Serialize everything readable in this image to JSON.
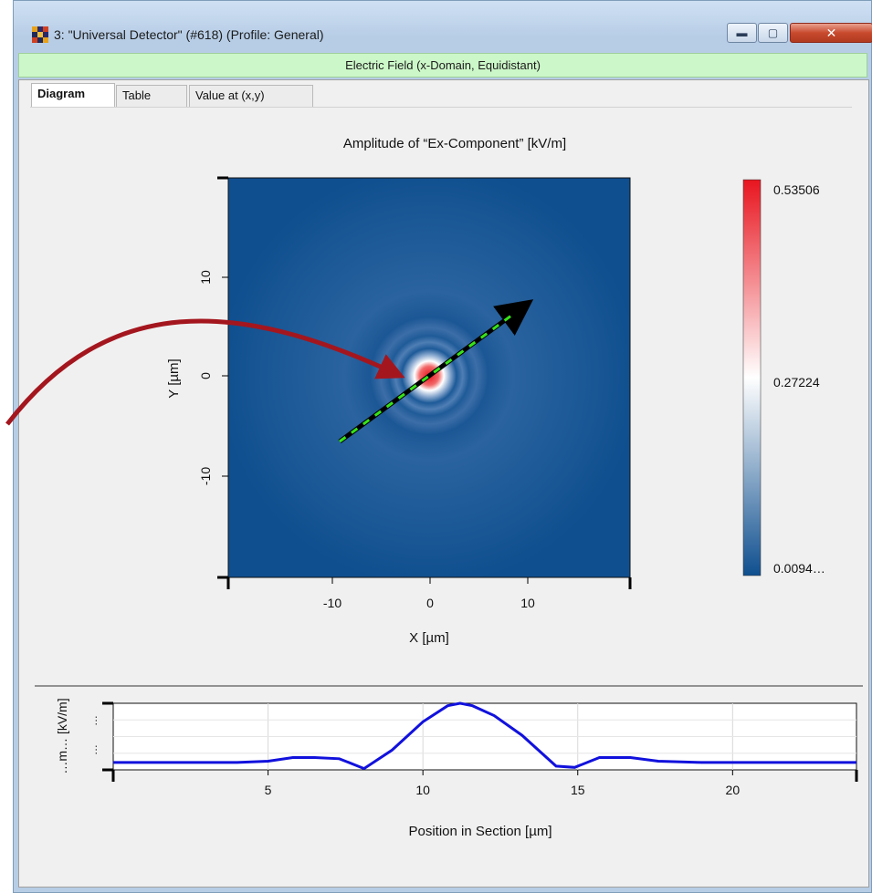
{
  "window": {
    "title": "3: \"Universal Detector\" (#618) (Profile: General)",
    "banner": "Electric Field (x-Domain, Equidistant)"
  },
  "tabs": [
    {
      "label": "Diagram",
      "active": true
    },
    {
      "label": "Table",
      "active": false
    },
    {
      "label": "Value at (x,y)",
      "active": false
    }
  ],
  "icons": {
    "app": "detector-app-icon",
    "minimize": "minimize-icon",
    "maximize": "maximize-icon",
    "close": "close-icon"
  },
  "colors": {
    "field_low": "#0f4f8f",
    "field_high": "#e8151f",
    "arrow_annotation": "#a4161e",
    "section_line_dash": "#38e31a",
    "curve": "#1111dd"
  },
  "heatmap": {
    "title": "Amplitude of “Ex-Component”  [kV/m]",
    "xlabel": "X [µm]",
    "ylabel": "Y [µm]",
    "xticks": [
      "-10",
      "0",
      "10"
    ],
    "yticks": [
      "10",
      "0",
      "-10"
    ],
    "colorbar_labels": [
      "0.53506",
      "0.27224",
      "0.0094…"
    ]
  },
  "chart_data": {
    "type": "line",
    "title": "",
    "xlabel": "Position in Section [µm]",
    "ylabel": "…m… [kV/m]",
    "xlim": [
      0,
      24
    ],
    "ylim": [
      0,
      0.54
    ],
    "xticks": [
      "5",
      "10",
      "15",
      "20"
    ],
    "yticks": [
      "…",
      "…"
    ],
    "grid": true,
    "series": [
      {
        "x": [
          0,
          1,
          2,
          3,
          4,
          5,
          5.8,
          6.5,
          7.3,
          8.1,
          9,
          10,
          10.8,
          11.2,
          11.6,
          12.3,
          13.2,
          14.3,
          14.9,
          15.7,
          16.7,
          17.6,
          19,
          21,
          24
        ],
        "values": [
          0.06,
          0.06,
          0.06,
          0.06,
          0.06,
          0.07,
          0.1,
          0.1,
          0.09,
          0.01,
          0.16,
          0.39,
          0.52,
          0.54,
          0.52,
          0.44,
          0.28,
          0.03,
          0.02,
          0.1,
          0.1,
          0.07,
          0.06,
          0.06,
          0.06
        ]
      }
    ]
  }
}
